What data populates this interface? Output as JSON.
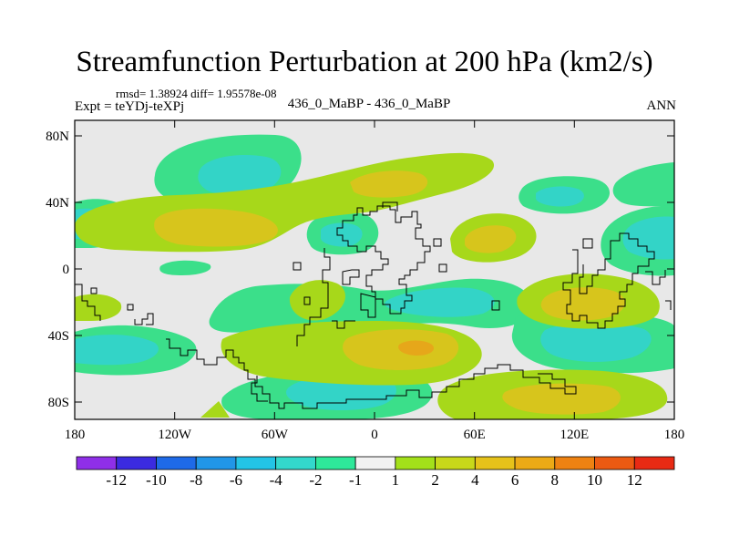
{
  "title": "Streamfunction Perturbation at 200 hPa (km2/s)",
  "rmsd_text": "rmsd= 1.38924 diff= 1.95578e-08",
  "expt_text": "Expt = teYDj-teXPj",
  "center_text": "436_0_MaBP - 436_0_MaBP",
  "season": "ANN",
  "colors": {
    "background": "#e8e8e8",
    "neg_light": "#3bdf8a",
    "neg_mid": "#33d4c7",
    "pos_light": "#a7d81a",
    "pos_mid": "#d7c51c",
    "pos_strong": "#e6a71a",
    "coast": "#000000"
  },
  "x_ticks": [
    "180",
    "120W",
    "60W",
    "0",
    "60E",
    "120E",
    "180"
  ],
  "y_ticks": [
    "80N",
    "40N",
    "0",
    "40S",
    "80S"
  ],
  "colorbar": {
    "colors": [
      "#8f2fe8",
      "#3b2be0",
      "#1e6ae8",
      "#2196e8",
      "#23c4e6",
      "#33d8cc",
      "#2ee89a",
      "#f2f2f2",
      "#a3e01a",
      "#c8d81a",
      "#e6c21a",
      "#ecaa16",
      "#ee8212",
      "#ec5a12",
      "#e82a14"
    ],
    "labels": [
      "-12",
      "-10",
      "-8",
      "-6",
      "-4",
      "-2",
      "-1",
      "1",
      "2",
      "4",
      "6",
      "8",
      "10",
      "12"
    ]
  }
}
